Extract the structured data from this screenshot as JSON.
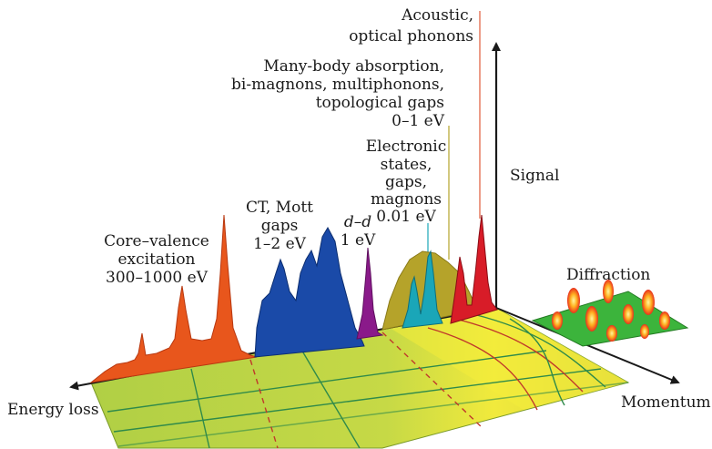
{
  "labels": {
    "energy_loss": "Energy loss",
    "momentum": "Momentum",
    "signal": "Signal",
    "diffraction": "Diffraction",
    "acoustic": [
      "Acoustic,",
      "optical phonons"
    ],
    "many_body": [
      "Many-body absorption,",
      "bi-magnons, multiphonons,",
      "topological gaps",
      "0–1 eV"
    ],
    "electronic": [
      "Electronic",
      "states,",
      "gaps,",
      "magnons",
      "0.01 eV"
    ],
    "dd": [
      "d–d",
      "1 eV"
    ],
    "ct_mott": [
      "CT, Mott",
      "gaps",
      "1–2 eV"
    ],
    "core_valence": [
      "Core–valence",
      "excitation",
      "300–1000 eV"
    ]
  },
  "colors": {
    "floor": "#b8d44a",
    "floor_highlight": "#f4ec3a",
    "core_valence": "#e8561c",
    "ct_mott": "#1a4aa8",
    "dd": "#8a1a8a",
    "many_body": "#b5a32a",
    "electronic": "#1aa6b8",
    "acoustic": "#d81c28",
    "diffraction_base": "#3cb43c"
  }
}
